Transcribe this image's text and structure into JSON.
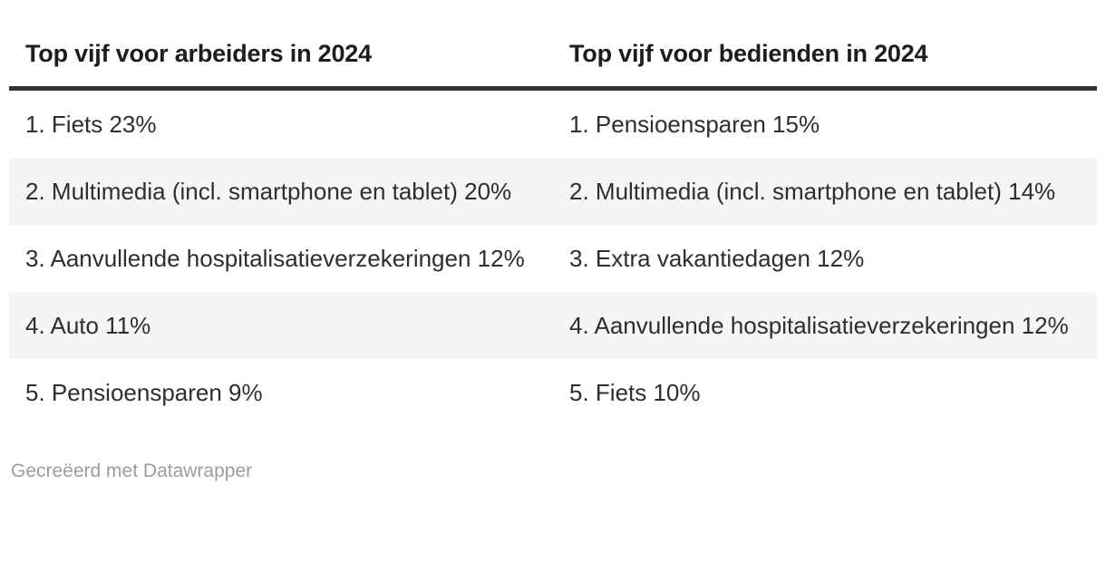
{
  "chart_data": {
    "type": "table",
    "columns": [
      "Top vijf voor arbeiders in 2024",
      "Top vijf voor bedienden in 2024"
    ],
    "rows": [
      [
        "1. Fiets 23%",
        "1. Pensioensparen 15%"
      ],
      [
        "2. Multimedia (incl. smartphone en tablet) 20%",
        "2. Multimedia (incl. smartphone en tablet) 14%"
      ],
      [
        "3. Aanvullende hospitalisatieverzekeringen 12%",
        "3. Extra vakantiedagen 12%"
      ],
      [
        "4. Auto 11%",
        "4. Aanvullende hospitalisatieverzekeringen 12%"
      ],
      [
        "5. Pensioensparen 9%",
        "5. Fiets 10%"
      ]
    ],
    "series": [
      {
        "name": "arbeiders",
        "items": [
          {
            "rank": 1,
            "label": "Fiets",
            "value_pct": 23
          },
          {
            "rank": 2,
            "label": "Multimedia (incl. smartphone en tablet)",
            "value_pct": 20
          },
          {
            "rank": 3,
            "label": "Aanvullende hospitalisatieverzekeringen",
            "value_pct": 12
          },
          {
            "rank": 4,
            "label": "Auto",
            "value_pct": 11
          },
          {
            "rank": 5,
            "label": "Pensioensparen",
            "value_pct": 9
          }
        ]
      },
      {
        "name": "bedienden",
        "items": [
          {
            "rank": 1,
            "label": "Pensioensparen",
            "value_pct": 15
          },
          {
            "rank": 2,
            "label": "Multimedia (incl. smartphone en tablet)",
            "value_pct": 14
          },
          {
            "rank": 3,
            "label": "Extra vakantiedagen",
            "value_pct": 12
          },
          {
            "rank": 4,
            "label": "Aanvullende hospitalisatieverzekeringen",
            "value_pct": 12
          },
          {
            "rank": 5,
            "label": "Fiets",
            "value_pct": 10
          }
        ]
      }
    ],
    "layout": {
      "zebra_striping": true,
      "striped_rows": [
        2,
        4
      ],
      "header_rule": true
    }
  },
  "table": {
    "columns": [
      {
        "header": "Top vijf voor arbeiders in 2024"
      },
      {
        "header": "Top vijf voor bedienden in 2024"
      }
    ],
    "rows": [
      [
        "1. Fiets 23%",
        "1. Pensioensparen 15%"
      ],
      [
        "2. Multimedia (incl. smartphone en tablet) 20%",
        "2. Multimedia (incl. smartphone en tablet) 14%"
      ],
      [
        "3. Aanvullende hospitalisatieverzekeringen 12%",
        "3. Extra vakantiedagen 12%"
      ],
      [
        "4. Auto 11%",
        "4. Aanvullende hospitalisatieverzekeringen 12%"
      ],
      [
        "5. Pensioensparen 9%",
        "5. Fiets 10%"
      ]
    ]
  },
  "footer": {
    "prefix": "Gecreëerd met ",
    "link_label": "Datawrapper"
  },
  "colors": {
    "header_text": "#1d1d1d",
    "body_text": "#2e2e2e",
    "header_rule": "#333333",
    "zebra_row": "#f5f5f5",
    "footer_text": "#9c9c9c",
    "background": "#ffffff"
  }
}
